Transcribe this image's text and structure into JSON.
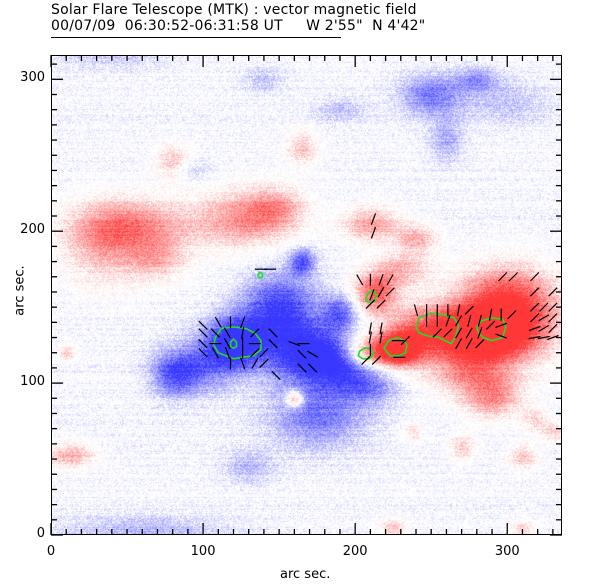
{
  "header": {
    "title_line1": "Solar Flare Telescope (MTK) : vector magnetic field",
    "title_line2": "00/07/09  06:30:52-06:31:58 UT     W 2'55\"  N 4'42\""
  },
  "axes": {
    "xlabel": "arc sec.",
    "ylabel": "arc sec.",
    "xlim": [
      0,
      336
    ],
    "ylim": [
      0,
      316
    ],
    "x_major_ticks": [
      0,
      100,
      200,
      300
    ],
    "y_major_ticks": [
      0,
      100,
      200,
      300
    ],
    "x_minor_step": 10,
    "y_minor_step": 10
  },
  "colors": {
    "positive_polarity": "#ff3b3b",
    "negative_polarity": "#3a3aff",
    "contour": "#22dd22",
    "vectors": "#000000",
    "frame": "#000000"
  },
  "chart_data": {
    "type": "heatmap",
    "title": "Solar Flare Telescope (MTK) : vector magnetic field",
    "subtitle": "00/07/09 06:30:52-06:31:58 UT  W 2'55\" N 4'42\"",
    "xlabel": "arc sec.",
    "ylabel": "arc sec.",
    "xlim": [
      0,
      336
    ],
    "ylim": [
      0,
      316
    ],
    "colormap": "blue (negative) - white - red (positive) longitudinal field",
    "positive_regions": [
      {
        "x": 55,
        "y": 205,
        "sx": 28,
        "sy": 12,
        "amp": 0.55
      },
      {
        "x": 35,
        "y": 190,
        "sx": 20,
        "sy": 18,
        "amp": 0.45
      },
      {
        "x": 70,
        "y": 182,
        "sx": 14,
        "sy": 10,
        "amp": 0.4
      },
      {
        "x": 125,
        "y": 208,
        "sx": 22,
        "sy": 14,
        "amp": 0.55
      },
      {
        "x": 148,
        "y": 215,
        "sx": 14,
        "sy": 10,
        "amp": 0.45
      },
      {
        "x": 80,
        "y": 245,
        "sx": 8,
        "sy": 8,
        "amp": 0.45
      },
      {
        "x": 165,
        "y": 255,
        "sx": 7,
        "sy": 8,
        "amp": 0.4
      },
      {
        "x": 210,
        "y": 205,
        "sx": 14,
        "sy": 8,
        "amp": 0.55
      },
      {
        "x": 240,
        "y": 195,
        "sx": 10,
        "sy": 7,
        "amp": 0.45
      },
      {
        "x": 213,
        "y": 160,
        "sx": 10,
        "sy": 9,
        "amp": 0.8
      },
      {
        "x": 230,
        "y": 175,
        "sx": 14,
        "sy": 8,
        "amp": 0.45
      },
      {
        "x": 255,
        "y": 135,
        "sx": 25,
        "sy": 12,
        "amp": 0.95
      },
      {
        "x": 290,
        "y": 135,
        "sx": 18,
        "sy": 12,
        "amp": 0.95
      },
      {
        "x": 210,
        "y": 120,
        "sx": 14,
        "sy": 8,
        "amp": 0.9
      },
      {
        "x": 230,
        "y": 122,
        "sx": 10,
        "sy": 8,
        "amp": 0.9
      },
      {
        "x": 310,
        "y": 145,
        "sx": 20,
        "sy": 20,
        "amp": 0.7
      },
      {
        "x": 275,
        "y": 110,
        "sx": 20,
        "sy": 12,
        "amp": 0.6
      },
      {
        "x": 290,
        "y": 90,
        "sx": 14,
        "sy": 10,
        "amp": 0.55
      },
      {
        "x": 290,
        "y": 160,
        "sx": 20,
        "sy": 14,
        "amp": 0.45
      },
      {
        "x": 160,
        "y": 90,
        "sx": 4,
        "sy": 4,
        "amp": 0.8
      },
      {
        "x": 12,
        "y": 53,
        "sx": 12,
        "sy": 6,
        "amp": 0.5
      },
      {
        "x": 10,
        "y": 120,
        "sx": 4,
        "sy": 4,
        "amp": 0.35
      },
      {
        "x": 270,
        "y": 58,
        "sx": 6,
        "sy": 6,
        "amp": 0.4
      },
      {
        "x": 310,
        "y": 52,
        "sx": 7,
        "sy": 6,
        "amp": 0.4
      },
      {
        "x": 318,
        "y": 76,
        "sx": 6,
        "sy": 5,
        "amp": 0.35
      },
      {
        "x": 330,
        "y": 68,
        "sx": 6,
        "sy": 5,
        "amp": 0.35
      },
      {
        "x": 238,
        "y": 68,
        "sx": 5,
        "sy": 5,
        "amp": 0.3
      },
      {
        "x": 225,
        "y": 4,
        "sx": 6,
        "sy": 5,
        "amp": 0.4
      },
      {
        "x": 310,
        "y": 4,
        "sx": 6,
        "sy": 4,
        "amp": 0.35
      }
    ],
    "negative_regions": [
      {
        "x": 120,
        "y": 127,
        "sx": 14,
        "sy": 12,
        "amp": 0.95
      },
      {
        "x": 150,
        "y": 150,
        "sx": 18,
        "sy": 16,
        "amp": 0.8
      },
      {
        "x": 165,
        "y": 120,
        "sx": 20,
        "sy": 14,
        "amp": 0.75
      },
      {
        "x": 190,
        "y": 115,
        "sx": 16,
        "sy": 12,
        "amp": 0.7
      },
      {
        "x": 95,
        "y": 110,
        "sx": 18,
        "sy": 12,
        "amp": 0.55
      },
      {
        "x": 80,
        "y": 105,
        "sx": 10,
        "sy": 10,
        "amp": 0.45
      },
      {
        "x": 175,
        "y": 80,
        "sx": 22,
        "sy": 16,
        "amp": 0.55
      },
      {
        "x": 210,
        "y": 100,
        "sx": 14,
        "sy": 10,
        "amp": 0.45
      },
      {
        "x": 165,
        "y": 180,
        "sx": 6,
        "sy": 6,
        "amp": 0.7
      },
      {
        "x": 190,
        "y": 147,
        "sx": 8,
        "sy": 8,
        "amp": 0.6
      },
      {
        "x": 250,
        "y": 290,
        "sx": 15,
        "sy": 10,
        "amp": 0.55
      },
      {
        "x": 280,
        "y": 300,
        "sx": 10,
        "sy": 6,
        "amp": 0.4
      },
      {
        "x": 260,
        "y": 260,
        "sx": 8,
        "sy": 10,
        "amp": 0.35
      },
      {
        "x": 300,
        "y": 285,
        "sx": 20,
        "sy": 10,
        "amp": 0.25
      },
      {
        "x": 130,
        "y": 45,
        "sx": 12,
        "sy": 8,
        "amp": 0.3
      },
      {
        "x": 60,
        "y": 5,
        "sx": 40,
        "sy": 6,
        "amp": 0.3
      },
      {
        "x": 140,
        "y": 300,
        "sx": 10,
        "sy": 6,
        "amp": 0.25
      },
      {
        "x": 40,
        "y": 315,
        "sx": 30,
        "sy": 6,
        "amp": 0.22
      },
      {
        "x": 90,
        "y": 240,
        "sx": 10,
        "sy": 5,
        "amp": 0.25
      },
      {
        "x": 190,
        "y": 280,
        "sx": 12,
        "sy": 6,
        "amp": 0.25
      }
    ],
    "contours": [
      {
        "name": "negative-core-outer",
        "points": [
          [
            108,
            130
          ],
          [
            112,
            136
          ],
          [
            120,
            137
          ],
          [
            128,
            136
          ],
          [
            134,
            133
          ],
          [
            138,
            128
          ],
          [
            138,
            122
          ],
          [
            133,
            118
          ],
          [
            126,
            117
          ],
          [
            120,
            116
          ],
          [
            115,
            118
          ],
          [
            110,
            120
          ],
          [
            107,
            125
          ]
        ]
      },
      {
        "name": "negative-core-inner",
        "points": [
          [
            118,
            127
          ],
          [
            120,
            129
          ],
          [
            122,
            127
          ],
          [
            122,
            124
          ],
          [
            120,
            123
          ],
          [
            118,
            124
          ]
        ]
      },
      {
        "name": "negative-small",
        "points": [
          [
            136,
            171
          ],
          [
            137,
            173
          ],
          [
            139,
            172
          ],
          [
            139,
            170
          ],
          [
            137,
            169
          ]
        ]
      },
      {
        "name": "positive-a",
        "points": [
          [
            207,
            156
          ],
          [
            209,
            160
          ],
          [
            212,
            161
          ],
          [
            214,
            158
          ],
          [
            213,
            154
          ],
          [
            210,
            153
          ],
          [
            207,
            154
          ]
        ]
      },
      {
        "name": "positive-b",
        "points": [
          [
            203,
            121
          ],
          [
            206,
            123
          ],
          [
            210,
            123
          ],
          [
            212,
            119
          ],
          [
            209,
            116
          ],
          [
            205,
            116
          ],
          [
            202,
            118
          ]
        ]
      },
      {
        "name": "positive-c",
        "points": [
          [
            219,
            123
          ],
          [
            222,
            128
          ],
          [
            228,
            130
          ],
          [
            232,
            128
          ],
          [
            234,
            125
          ],
          [
            233,
            120
          ],
          [
            229,
            118
          ],
          [
            223,
            118
          ]
        ]
      },
      {
        "name": "positive-d",
        "points": [
          [
            240,
            137
          ],
          [
            242,
            143
          ],
          [
            250,
            146
          ],
          [
            258,
            145
          ],
          [
            265,
            143
          ],
          [
            268,
            138
          ],
          [
            266,
            130
          ],
          [
            263,
            126
          ],
          [
            255,
            130
          ],
          [
            248,
            131
          ],
          [
            242,
            133
          ]
        ]
      },
      {
        "name": "positive-e",
        "points": [
          [
            280,
            137
          ],
          [
            283,
            141
          ],
          [
            290,
            143
          ],
          [
            297,
            142
          ],
          [
            299,
            137
          ],
          [
            297,
            130
          ],
          [
            290,
            128
          ],
          [
            284,
            130
          ],
          [
            281,
            133
          ]
        ]
      }
    ],
    "vectors": [
      {
        "x": 212,
        "y": 208,
        "angle": 70
      },
      {
        "x": 212,
        "y": 199,
        "angle": 70
      },
      {
        "x": 138,
        "y": 175,
        "angle": 0
      },
      {
        "x": 144,
        "y": 175,
        "angle": 0
      },
      {
        "x": 100,
        "y": 138,
        "angle": -45
      },
      {
        "x": 110,
        "y": 140,
        "angle": -60
      },
      {
        "x": 118,
        "y": 140,
        "angle": 90
      },
      {
        "x": 126,
        "y": 140,
        "angle": 70
      },
      {
        "x": 100,
        "y": 133,
        "angle": -45
      },
      {
        "x": 108,
        "y": 133,
        "angle": -45
      },
      {
        "x": 116,
        "y": 133,
        "angle": -60
      },
      {
        "x": 126,
        "y": 133,
        "angle": 80
      },
      {
        "x": 134,
        "y": 133,
        "angle": 45
      },
      {
        "x": 100,
        "y": 126,
        "angle": -45
      },
      {
        "x": 108,
        "y": 126,
        "angle": 0
      },
      {
        "x": 116,
        "y": 126,
        "angle": -60
      },
      {
        "x": 126,
        "y": 126,
        "angle": 90
      },
      {
        "x": 134,
        "y": 126,
        "angle": 0
      },
      {
        "x": 100,
        "y": 120,
        "angle": -45
      },
      {
        "x": 108,
        "y": 120,
        "angle": -60
      },
      {
        "x": 116,
        "y": 120,
        "angle": -70
      },
      {
        "x": 126,
        "y": 120,
        "angle": 90
      },
      {
        "x": 134,
        "y": 120,
        "angle": 45
      },
      {
        "x": 140,
        "y": 120,
        "angle": 45
      },
      {
        "x": 118,
        "y": 113,
        "angle": 90
      },
      {
        "x": 126,
        "y": 113,
        "angle": -70
      },
      {
        "x": 134,
        "y": 113,
        "angle": 60
      },
      {
        "x": 140,
        "y": 113,
        "angle": 45
      },
      {
        "x": 146,
        "y": 133,
        "angle": -45
      },
      {
        "x": 146,
        "y": 126,
        "angle": -45
      },
      {
        "x": 160,
        "y": 126,
        "angle": -20
      },
      {
        "x": 166,
        "y": 126,
        "angle": 0
      },
      {
        "x": 165,
        "y": 119,
        "angle": -45
      },
      {
        "x": 172,
        "y": 119,
        "angle": -30
      },
      {
        "x": 165,
        "y": 110,
        "angle": -45
      },
      {
        "x": 172,
        "y": 110,
        "angle": -45
      },
      {
        "x": 148,
        "y": 105,
        "angle": -45
      },
      {
        "x": 203,
        "y": 168,
        "angle": -60
      },
      {
        "x": 210,
        "y": 168,
        "angle": 90
      },
      {
        "x": 217,
        "y": 168,
        "angle": 70
      },
      {
        "x": 223,
        "y": 168,
        "angle": 60
      },
      {
        "x": 211,
        "y": 158,
        "angle": 70
      },
      {
        "x": 217,
        "y": 160,
        "angle": 60
      },
      {
        "x": 223,
        "y": 160,
        "angle": 45
      },
      {
        "x": 210,
        "y": 152,
        "angle": 45
      },
      {
        "x": 217,
        "y": 152,
        "angle": 45
      },
      {
        "x": 210,
        "y": 136,
        "angle": 80
      },
      {
        "x": 217,
        "y": 136,
        "angle": 80
      },
      {
        "x": 210,
        "y": 130,
        "angle": 80
      },
      {
        "x": 217,
        "y": 130,
        "angle": 80
      },
      {
        "x": 210,
        "y": 122,
        "angle": 90
      },
      {
        "x": 207,
        "y": 115,
        "angle": 45
      },
      {
        "x": 214,
        "y": 115,
        "angle": 45
      },
      {
        "x": 228,
        "y": 128,
        "angle": 0
      },
      {
        "x": 233,
        "y": 128,
        "angle": 45
      },
      {
        "x": 229,
        "y": 117,
        "angle": 0
      },
      {
        "x": 240,
        "y": 148,
        "angle": -75
      },
      {
        "x": 247,
        "y": 148,
        "angle": 90
      },
      {
        "x": 254,
        "y": 148,
        "angle": 90
      },
      {
        "x": 261,
        "y": 148,
        "angle": 90
      },
      {
        "x": 268,
        "y": 148,
        "angle": 80
      },
      {
        "x": 275,
        "y": 148,
        "angle": 45
      },
      {
        "x": 247,
        "y": 141,
        "angle": 90
      },
      {
        "x": 254,
        "y": 141,
        "angle": 90
      },
      {
        "x": 261,
        "y": 141,
        "angle": 70
      },
      {
        "x": 268,
        "y": 141,
        "angle": 60
      },
      {
        "x": 275,
        "y": 141,
        "angle": 75
      },
      {
        "x": 282,
        "y": 141,
        "angle": 75
      },
      {
        "x": 254,
        "y": 133,
        "angle": 45
      },
      {
        "x": 261,
        "y": 133,
        "angle": 45
      },
      {
        "x": 268,
        "y": 133,
        "angle": 60
      },
      {
        "x": 275,
        "y": 133,
        "angle": 60
      },
      {
        "x": 282,
        "y": 133,
        "angle": 70
      },
      {
        "x": 268,
        "y": 126,
        "angle": 60
      },
      {
        "x": 275,
        "y": 126,
        "angle": 60
      },
      {
        "x": 289,
        "y": 145,
        "angle": 80
      },
      {
        "x": 296,
        "y": 145,
        "angle": 90
      },
      {
        "x": 303,
        "y": 145,
        "angle": 45
      },
      {
        "x": 289,
        "y": 138,
        "angle": 45
      },
      {
        "x": 296,
        "y": 138,
        "angle": 20
      },
      {
        "x": 296,
        "y": 131,
        "angle": -20
      },
      {
        "x": 282,
        "y": 126,
        "angle": 45
      },
      {
        "x": 297,
        "y": 170,
        "angle": 45
      },
      {
        "x": 304,
        "y": 170,
        "angle": 45
      },
      {
        "x": 318,
        "y": 170,
        "angle": 45
      },
      {
        "x": 318,
        "y": 160,
        "angle": 45
      },
      {
        "x": 330,
        "y": 160,
        "angle": 45
      },
      {
        "x": 318,
        "y": 150,
        "angle": 45
      },
      {
        "x": 324,
        "y": 150,
        "angle": 45
      },
      {
        "x": 330,
        "y": 150,
        "angle": 45
      },
      {
        "x": 318,
        "y": 143,
        "angle": 45
      },
      {
        "x": 324,
        "y": 143,
        "angle": 30
      },
      {
        "x": 330,
        "y": 143,
        "angle": 45
      },
      {
        "x": 318,
        "y": 136,
        "angle": 20
      },
      {
        "x": 324,
        "y": 136,
        "angle": 30
      },
      {
        "x": 330,
        "y": 136,
        "angle": 45
      },
      {
        "x": 318,
        "y": 130,
        "angle": 10
      },
      {
        "x": 324,
        "y": 130,
        "angle": 10
      },
      {
        "x": 330,
        "y": 130,
        "angle": 20
      }
    ]
  }
}
